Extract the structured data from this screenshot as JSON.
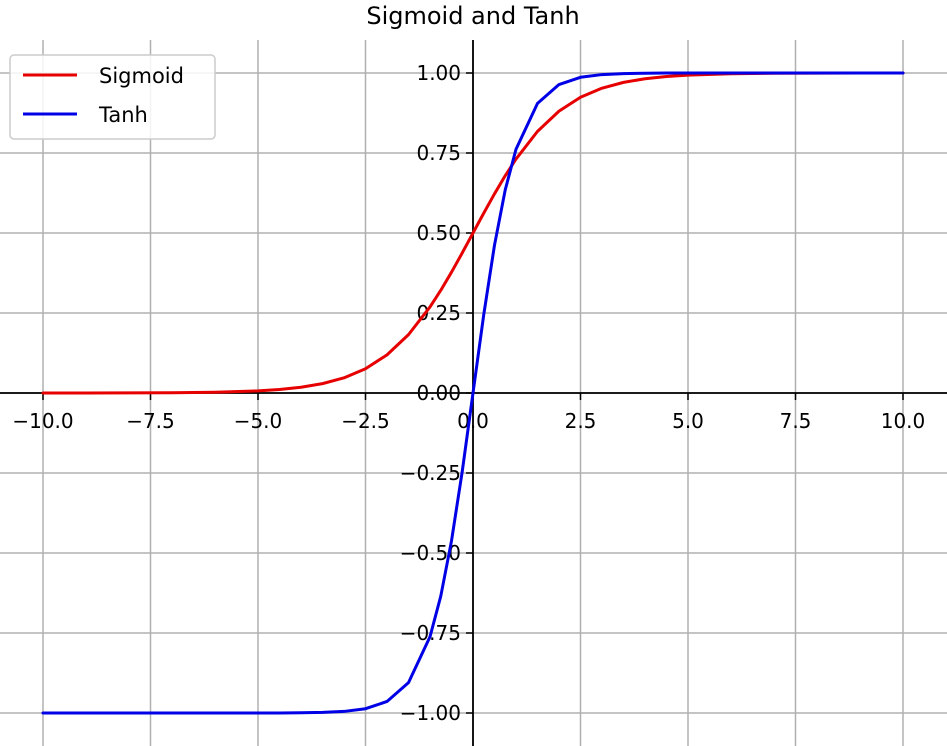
{
  "chart_data": {
    "type": "line",
    "title": "Sigmoid and Tanh",
    "xlabel": "",
    "ylabel": "",
    "xlim": [
      -10,
      10
    ],
    "ylim": [
      -1.0,
      1.0
    ],
    "x_ticks": [
      "−10.0",
      "−7.5",
      "−5.0",
      "−2.5",
      "0.0",
      "2.5",
      "5.0",
      "7.5",
      "10.0"
    ],
    "y_ticks": [
      "−1.00",
      "−0.75",
      "−0.50",
      "−0.25",
      "0.00",
      "0.25",
      "0.50",
      "0.75",
      "1.00"
    ],
    "grid": true,
    "axes_through_origin": true,
    "legend_position": "top-left",
    "x": [
      -10,
      -9,
      -8,
      -7,
      -6,
      -5,
      -4.5,
      -4,
      -3.5,
      -3,
      -2.5,
      -2,
      -1.5,
      -1,
      -0.75,
      -0.5,
      -0.25,
      0,
      0.25,
      0.5,
      0.75,
      1,
      1.5,
      2,
      2.5,
      3,
      3.5,
      4,
      4.5,
      5,
      6,
      7,
      8,
      9,
      10
    ],
    "series": [
      {
        "name": "Sigmoid",
        "color": "#e60000",
        "values": [
          0.0,
          0.0001,
          0.0003,
          0.0009,
          0.0025,
          0.0067,
          0.011,
          0.018,
          0.0293,
          0.0474,
          0.0759,
          0.1192,
          0.1824,
          0.2689,
          0.3208,
          0.3775,
          0.4378,
          0.5,
          0.5622,
          0.6225,
          0.6792,
          0.7311,
          0.8176,
          0.8808,
          0.9241,
          0.9526,
          0.9707,
          0.982,
          0.989,
          0.9933,
          0.9975,
          0.9991,
          0.9997,
          0.9999,
          1.0
        ]
      },
      {
        "name": "Tanh",
        "color": "#0000e6",
        "values": [
          -1.0,
          -1.0,
          -1.0,
          -1.0,
          -1.0,
          -0.9999,
          -0.9998,
          -0.9993,
          -0.9982,
          -0.9951,
          -0.9866,
          -0.964,
          -0.9051,
          -0.7616,
          -0.6351,
          -0.4621,
          -0.2449,
          0.0,
          0.2449,
          0.4621,
          0.6351,
          0.7616,
          0.9051,
          0.964,
          0.9866,
          0.9951,
          0.9982,
          0.9993,
          0.9998,
          0.9999,
          1.0,
          1.0,
          1.0,
          1.0,
          1.0
        ]
      }
    ]
  }
}
